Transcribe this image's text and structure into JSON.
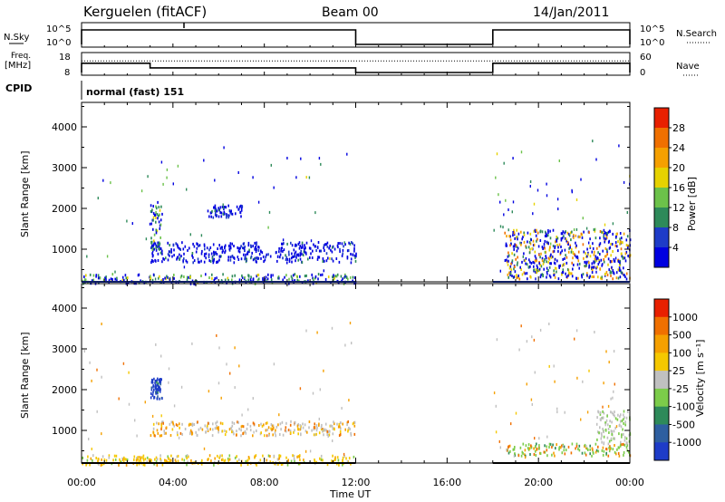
{
  "header": {
    "station": "Kerguelen (fitACF)",
    "beam": "Beam 00",
    "date": "14/Jan/2011"
  },
  "sky_panel": {
    "left_label": "N.Sky",
    "right_label": "N.Search",
    "left_ticks": [
      "10^5",
      "10^0"
    ],
    "right_ticks": [
      "10^5",
      "10^0"
    ]
  },
  "freq_panel": {
    "left_label_1": "Freq.",
    "left_label_2": "[MHz]",
    "right_label": "Nave",
    "left_ticks": [
      "18",
      "8"
    ],
    "right_ticks": [
      "60",
      "0"
    ]
  },
  "cpid": {
    "label": "CPID",
    "value": "normal (fast) 151"
  },
  "colors": {
    "power_scale": [
      "#0000e0",
      "#1e3cc8",
      "#2e8a5a",
      "#6cc24a",
      "#e6d200",
      "#f5a000",
      "#f07000",
      "#e82000"
    ],
    "velocity_scale": [
      "#1e3cc8",
      "#2e5fa0",
      "#2e8a5a",
      "#7ccc4a",
      "#c0c0c0",
      "#f5c800",
      "#f5a000",
      "#f07000",
      "#e82000"
    ]
  },
  "chart_data": [
    {
      "type": "line",
      "title": "N.Sky / N.Search",
      "x": [
        "00:00",
        "12:00",
        "12:00",
        "18:00",
        "18:00",
        "24:00"
      ],
      "series": [
        {
          "name": "N.Sky",
          "values": [
            100000,
            100000,
            1,
            1,
            100000,
            100000
          ]
        }
      ],
      "yscale": "log",
      "ylim": [
        1,
        100000
      ]
    },
    {
      "type": "line",
      "title": "Freq. / Nave",
      "x": [
        "00:00",
        "03:00",
        "03:00",
        "12:00",
        "12:00",
        "18:00",
        "18:00",
        "24:00"
      ],
      "series": [
        {
          "name": "Freq. [MHz]",
          "values": [
            14,
            14,
            11,
            11,
            null,
            null,
            14,
            14
          ]
        },
        {
          "name": "Nave",
          "values": [
            45,
            45,
            45,
            45,
            null,
            null,
            45,
            45
          ]
        }
      ],
      "ylim": [
        8,
        18
      ]
    },
    {
      "type": "heatmap",
      "title": "Power [dB]",
      "xlabel": "",
      "ylabel": "Slant Range [km]",
      "xlim": [
        0,
        24
      ],
      "ylim": [
        200,
        4600
      ],
      "x_ticks": [
        "00:00",
        "04:00",
        "08:00",
        "12:00",
        "16:00",
        "20:00",
        "00:00"
      ],
      "y_ticks": [
        "1000",
        "2000",
        "3000",
        "4000"
      ],
      "colorbar_label": "Power [dB]",
      "colorbar_ticks": [
        "4",
        "8",
        "12",
        "16",
        "20",
        "24",
        "28"
      ],
      "regions": [
        {
          "t0": 0.0,
          "t1": 12.0,
          "r0": 180,
          "r1": 420,
          "dominant": "blue/green"
        },
        {
          "t0": 3.0,
          "t1": 12.0,
          "r0": 700,
          "r1": 1200,
          "dominant": "blue"
        },
        {
          "t0": 3.0,
          "t1": 3.5,
          "r0": 900,
          "r1": 2300,
          "dominant": "blue/green"
        },
        {
          "t0": 5.5,
          "t1": 7.0,
          "r0": 1800,
          "r1": 2100,
          "dominant": "blue"
        },
        {
          "t0": 18.5,
          "t1": 24.0,
          "r0": 300,
          "r1": 1500,
          "dominant": "blue/orange"
        }
      ]
    },
    {
      "type": "heatmap",
      "title": "Velocity [m s^-1]",
      "xlabel": "Time UT",
      "ylabel": "Slant Range [km]",
      "xlim": [
        0,
        24
      ],
      "ylim": [
        200,
        4600
      ],
      "x_ticks": [
        "00:00",
        "04:00",
        "08:00",
        "12:00",
        "16:00",
        "20:00",
        "00:00"
      ],
      "y_ticks": [
        "1000",
        "2000",
        "3000",
        "4000"
      ],
      "colorbar_label": "Velocity [m s⁻¹]",
      "colorbar_ticks": [
        "1000",
        "500",
        "100",
        "25",
        "-25",
        "-100",
        "-500",
        "-1000"
      ],
      "regions": [
        {
          "t0": 0.0,
          "t1": 12.0,
          "r0": 180,
          "r1": 420,
          "dominant": "yellow/orange"
        },
        {
          "t0": 3.0,
          "t1": 12.0,
          "r0": 900,
          "r1": 1250,
          "dominant": "grey/orange"
        },
        {
          "t0": 3.0,
          "t1": 3.5,
          "r0": 1800,
          "r1": 2300,
          "dominant": "blue"
        },
        {
          "t0": 18.5,
          "t1": 24.0,
          "r0": 400,
          "r1": 700,
          "dominant": "green/orange"
        },
        {
          "t0": 22.5,
          "t1": 24.0,
          "r0": 700,
          "r1": 1500,
          "dominant": "grey"
        }
      ]
    }
  ],
  "axis": {
    "xlabel": "Time UT"
  }
}
